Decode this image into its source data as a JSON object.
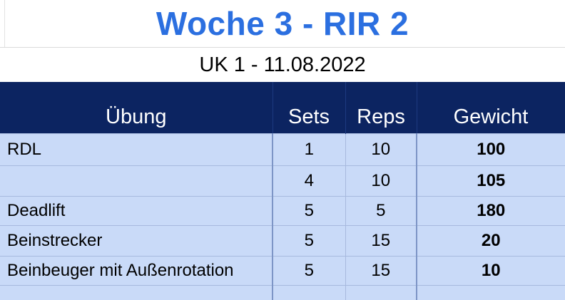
{
  "sheet": {
    "title": "Woche 3 - RIR 2",
    "subtitle": "UK 1 - 11.08.2022",
    "columns": [
      "Übung",
      "Sets",
      "Reps",
      "Gewicht"
    ],
    "rows": [
      {
        "exercise": "RDL",
        "sets": "1",
        "reps": "10",
        "weight": "100"
      },
      {
        "exercise": "",
        "sets": "4",
        "reps": "10",
        "weight": "105"
      },
      {
        "exercise": "Deadlift",
        "sets": "5",
        "reps": "5",
        "weight": "180"
      },
      {
        "exercise": "Beinstrecker",
        "sets": "5",
        "reps": "15",
        "weight": "20"
      },
      {
        "exercise": "Beinbeuger mit Außenrotation",
        "sets": "5",
        "reps": "15",
        "weight": "10"
      }
    ]
  },
  "colors": {
    "title": "#2b6fe0",
    "header_bg": "#0c2461",
    "header_text": "#ffffff",
    "body_bg": "#c9daf8"
  }
}
